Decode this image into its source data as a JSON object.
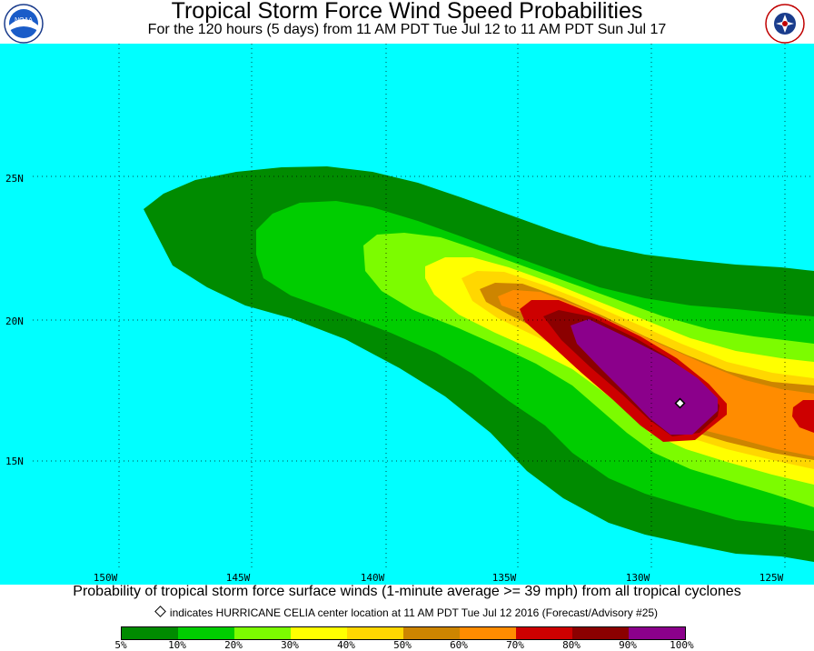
{
  "header": {
    "title": "Tropical Storm Force Wind Speed Probabilities",
    "subtitle": "For the 120 hours (5 days) from 11 AM PDT Tue Jul 12 to 11 AM PDT Sun Jul 17",
    "left_logo_text": "NOAA",
    "right_logo_text": "NATIONAL WEATHER SERVICE"
  },
  "map": {
    "ocean_color": "#00ffff",
    "lon_labels": [
      "150W",
      "145W",
      "140W",
      "135W",
      "130W",
      "125W"
    ],
    "lat_labels": [
      "25N",
      "20N",
      "15N"
    ],
    "center_marker": "diamond"
  },
  "footer": {
    "caption": "Probability of tropical storm force surface winds (1-minute average >= 39 mph) from all tropical cyclones",
    "marker_note": "indicates HURRICANE CELIA center location at 11 AM PDT Tue Jul 12 2016 (Forecast/Advisory #25)"
  },
  "legend": {
    "colors": [
      "#008b00",
      "#00cd00",
      "#7cfc00",
      "#ffff00",
      "#ffd700",
      "#cd8500",
      "#ff8c00",
      "#cd0000",
      "#8b0000",
      "#8b008b"
    ],
    "labels": [
      "5%",
      "10%",
      "20%",
      "30%",
      "40%",
      "50%",
      "60%",
      "70%",
      "80%",
      "90%",
      "100%"
    ]
  }
}
